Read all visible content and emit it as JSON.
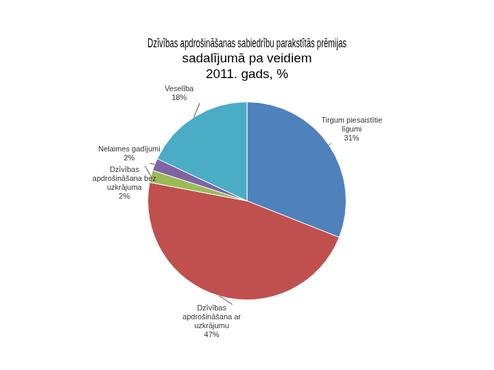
{
  "chart_data": {
    "type": "pie",
    "title": [
      "Dzīvības apdrošināšanas sabiedrību parakstītās prēmijas",
      "sadalījumā pa veidiem"
    ],
    "subtitle": "2011. gads, %",
    "categories": [
      "Tirgum piesaistītie līgumi",
      "Dzīvības apdrošināšana ar uzkrājumu",
      "Dzīvības apdrošināšana bez uzkrājuma",
      "Nelaimes gadījumi",
      "Veselība"
    ],
    "values": [
      31,
      47,
      2,
      2,
      18
    ],
    "value_labels": [
      "31%",
      "47%",
      "2%",
      "2%",
      "18%"
    ],
    "colors": [
      "#4f81bd",
      "#c0504d",
      "#9bbb59",
      "#8064a2",
      "#4bacc6"
    ],
    "data_labels": true
  }
}
